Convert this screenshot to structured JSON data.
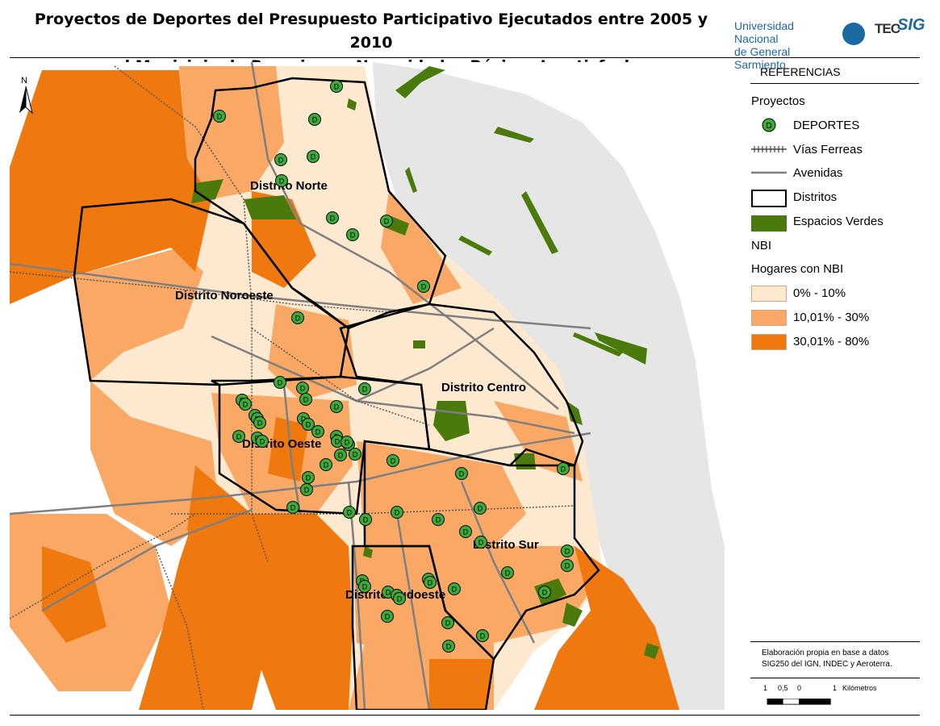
{
  "title": {
    "line1": "Proyectos de Deportes del Presupuesto Participativo Ejecutados entre 2005 y 2010",
    "line2": "en el Municipio de Rosario por Necesidades Básicas Insatisfechas"
  },
  "logos": {
    "university_line1": "Universidad Nacional",
    "university_line2": "de General Sarmiento",
    "tec": "TEC",
    "sig": "SIG"
  },
  "map": {
    "north_label": "N",
    "districts": [
      {
        "name": "Distrito Norte"
      },
      {
        "name": "Distrito Noroeste"
      },
      {
        "name": "Distrito Centro"
      },
      {
        "name": "Distrito Oeste"
      },
      {
        "name": "Distrito Sur"
      },
      {
        "name": "Distrito Sudoeste"
      }
    ],
    "project_marker_letter": "D",
    "project_count": 70
  },
  "legend": {
    "heading": "REFERENCIAS",
    "section_projects": "Proyectos",
    "deportes": "DEPORTES",
    "railways": "Vías Ferreas",
    "avenues": "Avenidas",
    "districts": "Distritos",
    "green_spaces": "Espacios Verdes",
    "section_nbi": "NBI",
    "nbi_subtitle": "Hogares con NBI",
    "classes": [
      {
        "label": "0% - 10%",
        "color": "#fde9d0"
      },
      {
        "label": "10,01% - 30%",
        "color": "#f9a965"
      },
      {
        "label": "30,01% - 80%",
        "color": "#ef780f"
      }
    ]
  },
  "colors": {
    "green_space": "#4a7a0b",
    "project_fill": "#3daa3a",
    "river": "#e6e6e6"
  },
  "credits": {
    "line1": "Elaboración propia en base a datos",
    "line2": "SIG250 del IGN, INDEC y Aeroterra."
  },
  "scale": {
    "labels": [
      "1",
      "0,5",
      "0",
      "1",
      "Kilómetros"
    ]
  }
}
